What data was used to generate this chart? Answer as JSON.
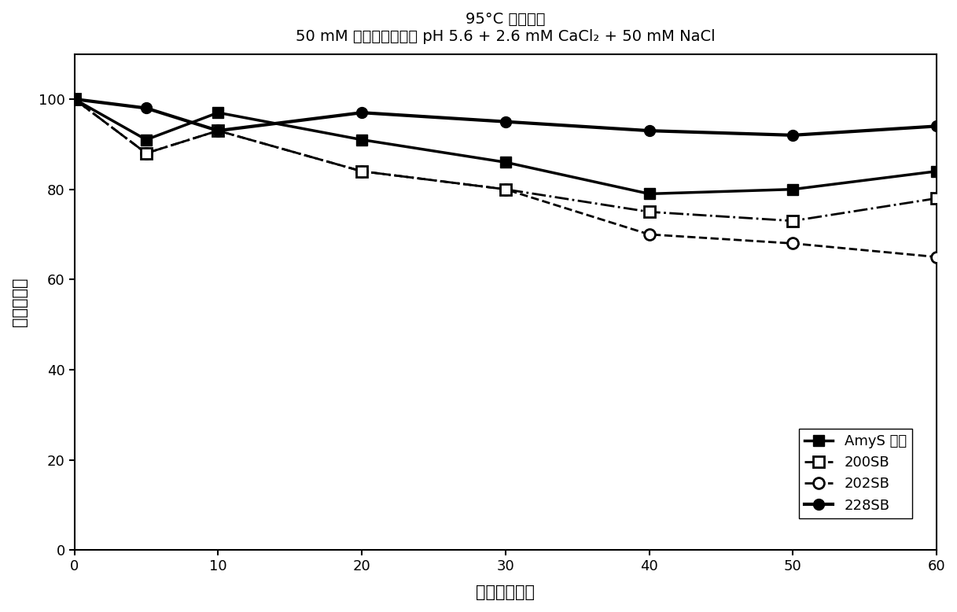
{
  "title_line1": "95°C 的稳定性",
  "title_line2": "50 mM 苹果酸盐缓冲液 pH 5.6 + 2.6 mM CaCl₂ + 50 mM NaCl",
  "xlabel": "时间（分钟）",
  "ylabel": "剩余活性％",
  "x": [
    0,
    5,
    10,
    20,
    30,
    40,
    50,
    60
  ],
  "AmyS": [
    100,
    91,
    97,
    91,
    86,
    79,
    80,
    84
  ],
  "S200SB": [
    100,
    88,
    93,
    84,
    80,
    75,
    73,
    78
  ],
  "S202SB": [
    100,
    88,
    93,
    84,
    80,
    70,
    68,
    65
  ],
  "S228SB": [
    100,
    98,
    93,
    97,
    95,
    93,
    92,
    94
  ],
  "legend_AmyS": "AmyS 对照",
  "legend_200SB": "200SB",
  "legend_202SB": "202SB",
  "legend_228SB": "228SB",
  "xlim": [
    0,
    60
  ],
  "ylim": [
    0,
    110
  ],
  "xticks": [
    0,
    10,
    20,
    30,
    40,
    50,
    60
  ],
  "yticks": [
    0,
    20,
    40,
    60,
    80,
    100
  ],
  "background_color": "#ffffff",
  "line_color": "#000000"
}
